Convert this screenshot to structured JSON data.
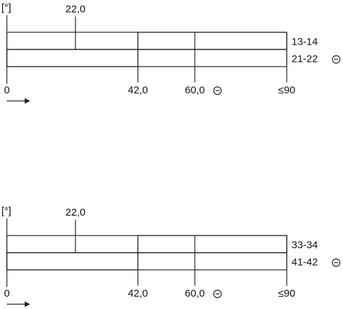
{
  "panels": [
    {
      "unit": "[°]",
      "top_label": "22,0",
      "rows": [
        "13-14",
        "21-22"
      ],
      "bottom_labels": [
        "0",
        "42,0",
        "60,0",
        "≤90"
      ]
    },
    {
      "unit": "[°]",
      "top_label": "22,0",
      "rows": [
        "33-34",
        "41-42"
      ],
      "bottom_labels": [
        "0",
        "42,0",
        "60,0",
        "≤90"
      ]
    }
  ]
}
